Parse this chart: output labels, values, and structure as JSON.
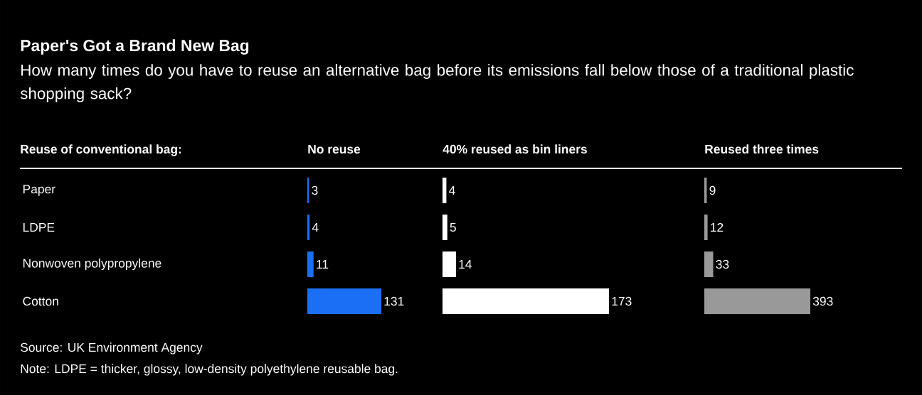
{
  "chart_data": [
    {
      "type": "bar",
      "orientation": "horizontal",
      "title": "No reuse",
      "ylabel": "Reuse of conventional bag:",
      "categories": [
        "Paper",
        "LDPE",
        "Nonwoven polypropylene",
        "Cotton"
      ],
      "values": [
        3,
        4,
        11,
        131
      ],
      "color": "#1a6ff5",
      "data_labels": true,
      "tick_labels": "y",
      "annotations": [
        "Paper's Got a Brand New Bag",
        "How many times do you have to reuse an alternative bag before its emissions fall below those of a traditional plastic shopping sack?",
        "Source: UK Environment Agency",
        "Note: LDPE = thicker, glossy, low-density polyethylene reusable bag."
      ]
    },
    {
      "type": "bar",
      "orientation": "horizontal",
      "title": "40% reused as bin liners",
      "values": [
        4,
        5,
        14,
        173
      ],
      "color": "#ffffff",
      "data_labels": true,
      "tick_labels": false
    },
    {
      "type": "bar",
      "orientation": "horizontal",
      "title": "Reused three times",
      "values": [
        9,
        12,
        33,
        393
      ],
      "color": "#999999",
      "data_labels": true,
      "tick_labels": false
    }
  ]
}
